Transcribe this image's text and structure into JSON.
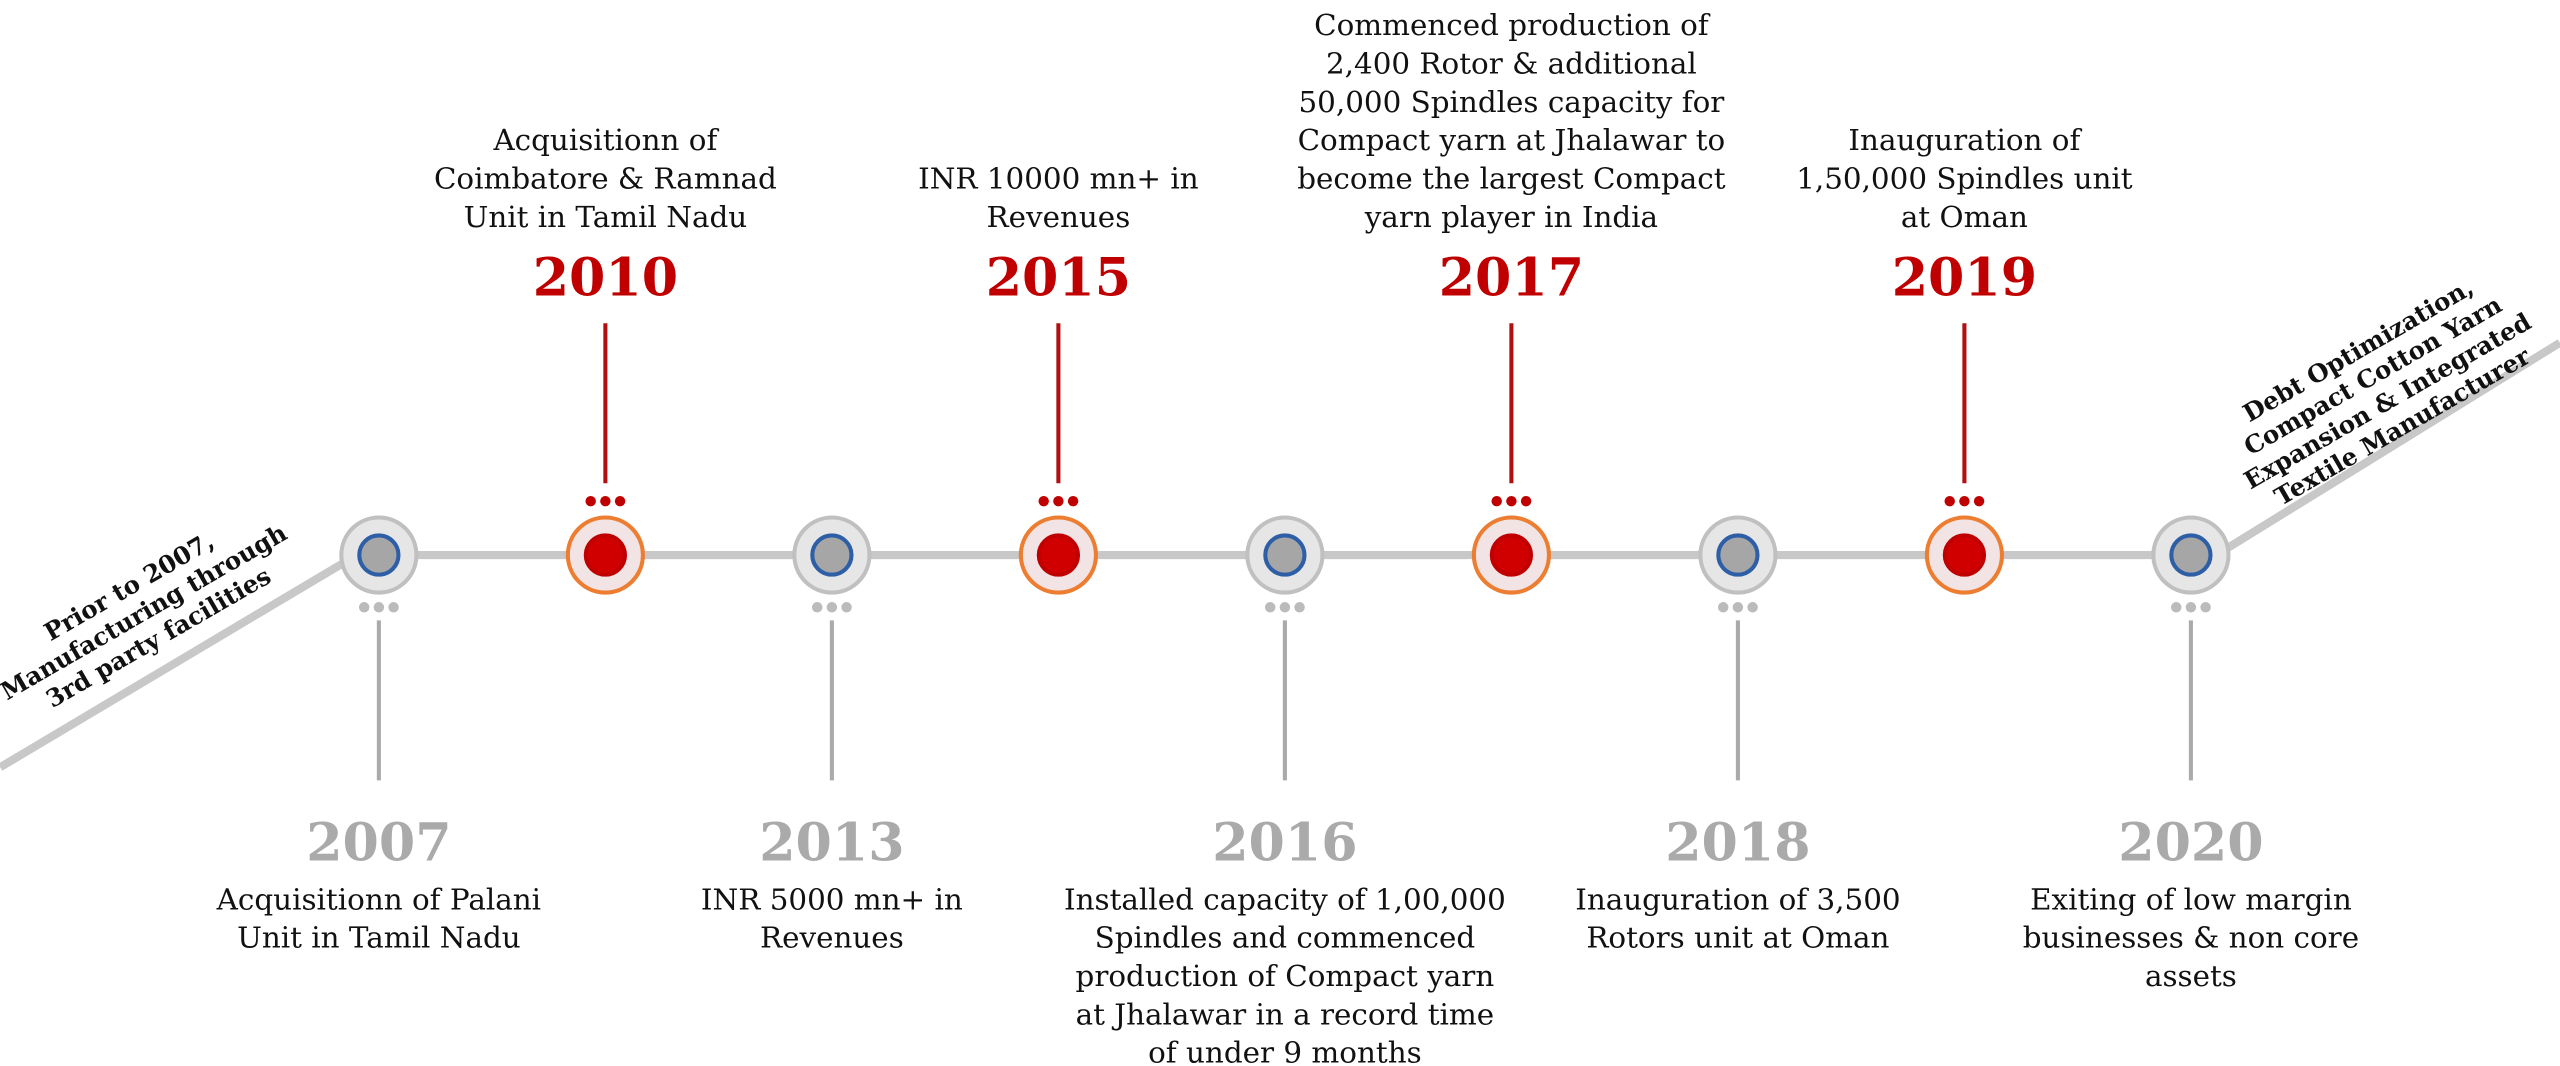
{
  "start_note": [
    "Prior to 2007,",
    "Manufacturing through",
    "3rd party facilities"
  ],
  "end_note": [
    "Debt Optimization,",
    "Compact Cotton Yarn",
    "Expansion & Integrated",
    "Textile Manufacturer"
  ],
  "nodes": [
    {
      "year": "2007",
      "lines": [
        "Acquisitionn of  Palani",
        "Unit in Tamil Nadu"
      ]
    },
    {
      "year": "2010",
      "lines": [
        "Acquisitionn of",
        "Coimbatore & Ramnad",
        "Unit in Tamil Nadu"
      ]
    },
    {
      "year": "2013",
      "lines": [
        "INR 5000 mn+ in",
        "Revenues"
      ]
    },
    {
      "year": "2015",
      "lines": [
        "INR 10000 mn+ in",
        "Revenues"
      ]
    },
    {
      "year": "2016",
      "lines": [
        "Installed capacity of 1,00,000",
        "Spindles and commenced",
        "production of Compact yarn",
        "at Jhalawar in a record time",
        "of under 9 months"
      ]
    },
    {
      "year": "2017",
      "lines": [
        "Commenced production of",
        "2,400 Rotor & additional",
        "50,000 Spindles capacity for",
        "Compact yarn at Jhalawar to",
        "become the largest Compact",
        "yarn player in India"
      ]
    },
    {
      "year": "2018",
      "lines": [
        "Inauguration of 3,500",
        "Rotors unit at Oman"
      ]
    },
    {
      "year": "2019",
      "lines": [
        "Inauguration of",
        "1,50,000 Spindles unit",
        "at Oman"
      ]
    },
    {
      "year": "2020",
      "lines": [
        "Exiting of low margin",
        "businesses & non core",
        "assets"
      ]
    }
  ]
}
